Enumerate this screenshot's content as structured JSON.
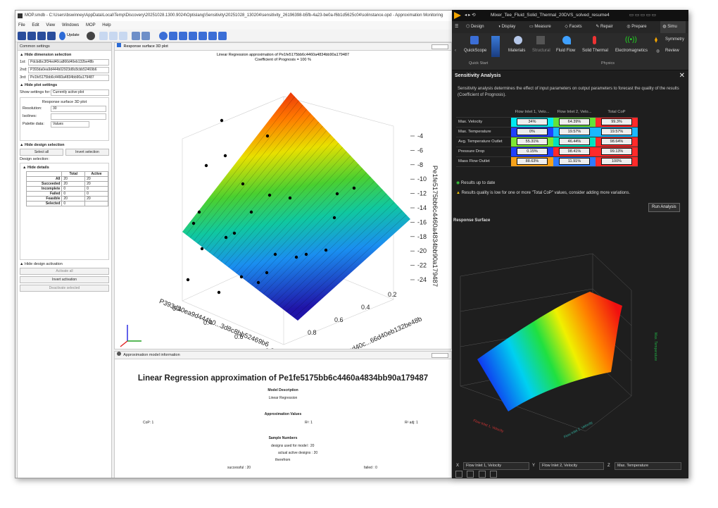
{
  "left_app": {
    "title": "MOP.smdb - C:\\Users\\bswinney\\AppData\\Local\\Temp\\Discovery\\20251028.1300.9024\\Optislang\\Sensitivity\\20251028_130204\\sensitivity_26196398-b5fb-4a23-be0a-f6b1d5625c04\\solinstance.opd - Approximation Monitoring",
    "menu": [
      "File",
      "Edit",
      "View",
      "Windows",
      "MOP",
      "Help"
    ],
    "update_label": "Update",
    "common_settings": {
      "title": "Common settings",
      "dimension_section": "Hide dimension selection",
      "dims": [
        {
          "label": "1st:",
          "value": "Pdcbdbc3f34ed40ca866d40eb132be48b"
        },
        {
          "label": "2nd:",
          "value": "P393da0ea9d444b02923d8c8cbb52469b6"
        },
        {
          "label": "3rd:",
          "value": "Pe1fe5175bb6c4460a4834bb90a179487"
        }
      ],
      "plot_section": "Hide plot settings",
      "show_settings_label": "Show settings for:",
      "show_settings_value": "Currently active plot",
      "plot_name": "Response surface 3D plot",
      "resolution_label": "Resolution:",
      "resolution_value": "30",
      "isolines_label": "Isolines:",
      "palette_label": "Palette data:",
      "palette_value": "Values",
      "design_section": "Hide design selection",
      "select_all": "Select all",
      "invert_selection": "Invert selection",
      "design_selection_label": "Design selection:",
      "details_label": "Hide details",
      "details_headers": [
        "",
        "Total",
        "Active"
      ],
      "details_rows": [
        [
          "All",
          "20",
          "20"
        ],
        [
          "Succeeded",
          "20",
          "20"
        ],
        [
          "Incomplete",
          "0",
          "0"
        ],
        [
          "Failed",
          "0",
          "0"
        ],
        [
          "Feasible",
          "20",
          "20"
        ],
        [
          "Selected",
          "0",
          ""
        ]
      ],
      "activation_section": "Hide design activation",
      "activate_all": "Activate all",
      "invert_activation": "Invert activation",
      "deactivate_selected": "Deactivate selected"
    },
    "plot_panel": {
      "title": "Response surface 3D plot",
      "chart_title": "Linear Regression approximation of Pe1fe5175bb6c4460a4834bb90a179487",
      "chart_subtitle": "Coefficient of Prognosis = 100 %"
    },
    "info_panel": {
      "title": "Approximation model information",
      "heading": "Linear Regression approximation of Pe1fe5175bb6c4460a4834bb90a179487",
      "model_desc_label": "Model Description",
      "model_desc_value": "Linear Regression",
      "approx_values_label": "Approximation Values",
      "cop_label": "CoP:",
      "cop_value": "1",
      "r2_label": "R²:",
      "r2_value": "1",
      "r2adj_label": "R² adj:",
      "r2adj_value": "1",
      "sample_label": "Sample Numbers",
      "designs_used_label": "designs used for model :",
      "designs_used_value": "20",
      "actual_active_label": "actual active designs :",
      "actual_active_value": "20",
      "therefrom_label": "therefrom",
      "successful_label": "successful :",
      "successful_value": "20",
      "failed_label": "failed :",
      "failed_value": "0"
    }
  },
  "chart_data": [
    {
      "type": "surface3d",
      "title": "Linear Regression approximation of Pe1fe5175bb6c4460a4834bb90a179487",
      "subtitle": "Coefficient of Prognosis = 100 %",
      "xlabel": "Pdcbdbc3f34ed40c...66d40eb132be48b",
      "ylabel": "P393da0ea9d444b0...3d8c8bb52469b6",
      "zlabel": "Pe1fe5175bb6c4460a4834bb90a179487",
      "x_ticks": [
        "0.8",
        "0.6",
        "0.4",
        "0.2"
      ],
      "y_ticks": [
        "0.2",
        "0.4",
        "0.6",
        "0.8"
      ],
      "z_ticks": [
        "-4",
        "-6",
        "-8",
        "-10",
        "-12",
        "-14",
        "-16",
        "-18",
        "-20",
        "-22",
        "-24"
      ],
      "zlim": [
        -24,
        -4
      ],
      "grid": true
    },
    {
      "type": "surface3d",
      "xlabel": "Flow Inlet 1, Velocity",
      "ylabel": "Flow Inlet 2, Velocity",
      "zlabel": "Max. Temperature",
      "grid": true
    }
  ],
  "right_app": {
    "title": "Mixer_Tee_Fluid_Solid_Thermal_20DVS_solved_resume4",
    "tabs": [
      "Design",
      "Display",
      "Measure",
      "Facets",
      "Repair",
      "Prepare",
      "Simu"
    ],
    "ribbon": {
      "quickscope": "QuickScope",
      "quick_start": "Quick Start",
      "materials": "Materials",
      "structural": "Structural",
      "fluid_flow": "Fluid Flow",
      "solid_thermal": "Solid Thermal",
      "electromagnetics": "Electromagnetics",
      "physics": "Physics",
      "symmetry": "Symmetry",
      "review": "Review"
    },
    "sensitivity": {
      "title": "Sensitivity Analysis",
      "description": "Sensitivity analysis determines the effect of input parameters on output parameters to forecast the quality of the results (Coefficient of Prognosis).",
      "headers": [
        "Flow Inlet 1, Velo...",
        "Flow Inlet 2, Velo...",
        "Total CoP"
      ],
      "rows": [
        {
          "name": "Max. Velocity",
          "values": [
            "34%",
            "64.39%",
            "99.3%"
          ],
          "colors": [
            "#00e8f0",
            "#63e23a",
            "#ff2a2a"
          ]
        },
        {
          "name": "Max. Temperature",
          "values": [
            "0%",
            "19.57%",
            "19.57%"
          ],
          "colors": [
            "#2040ff",
            "#19b8ff",
            "#19b8ff"
          ]
        },
        {
          "name": "Avg. Temperature Outlet",
          "values": [
            "55.31%",
            "46.44%",
            "98.64%"
          ],
          "colors": [
            "#7ee830",
            "#00e3c0",
            "#ff2a2a"
          ]
        },
        {
          "name": "Pressure Drop",
          "values": [
            "0.15%",
            "98.41%",
            "99.13%"
          ],
          "colors": [
            "#2040ff",
            "#ff2a2a",
            "#ff2a2a"
          ]
        },
        {
          "name": "Mass Flow Outlet",
          "values": [
            "88.63%",
            "11.91%",
            "100%"
          ],
          "colors": [
            "#f6a21a",
            "#2f7bff",
            "#ff2a2a"
          ]
        }
      ],
      "status_ok": "Results up to date",
      "status_warn": "Results quality is low for one or more \"Total CoP\" values, consider adding more variations.",
      "run_analysis": "Run Analysis",
      "response_surface_label": "Response Surface",
      "x_axis_label": "X",
      "x_axis_value": "Flow Inlet 1, Velocity",
      "y_axis_label": "Y",
      "y_axis_value": "Flow Inlet 2, Velocity",
      "z_axis_label": "Z",
      "z_axis_value": "Max. Temperature"
    }
  }
}
